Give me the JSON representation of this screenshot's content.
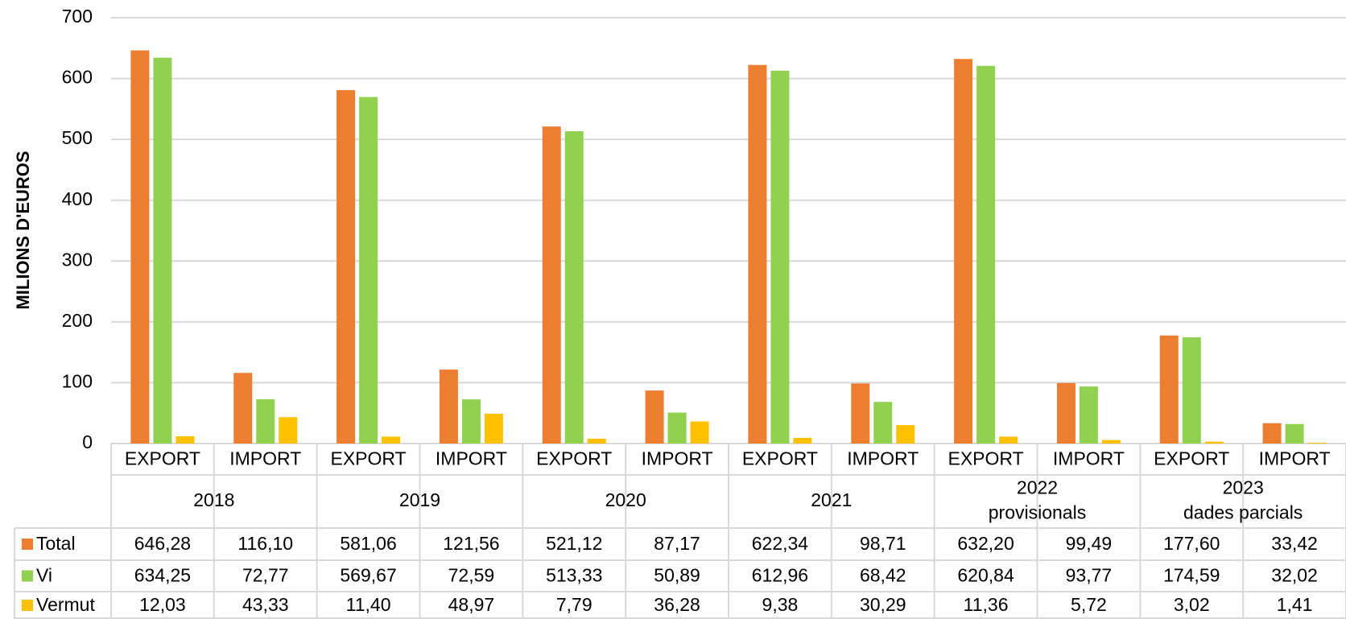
{
  "chart_data": {
    "type": "bar",
    "y_axis_label": "MILIONS D'EUROS",
    "categories": [
      "EXPORT",
      "IMPORT",
      "EXPORT",
      "IMPORT",
      "EXPORT",
      "IMPORT",
      "EXPORT",
      "IMPORT",
      "EXPORT",
      "IMPORT",
      "EXPORT",
      "IMPORT"
    ],
    "groups": [
      [
        "2018"
      ],
      [
        "2019"
      ],
      [
        "2020"
      ],
      [
        "2021"
      ],
      [
        "2022",
        "provisionals"
      ],
      [
        "2023",
        "dades parcials"
      ]
    ],
    "series": [
      {
        "name": "Total",
        "color": "#ED7D31",
        "values": [
          646.28,
          116.1,
          581.06,
          121.56,
          521.12,
          87.17,
          622.34,
          98.71,
          632.2,
          99.49,
          177.6,
          33.42
        ],
        "value_labels": [
          "646,28",
          "116,10",
          "581,06",
          "121,56",
          "521,12",
          "87,17",
          "622,34",
          "98,71",
          "632,20",
          "99,49",
          "177,60",
          "33,42"
        ]
      },
      {
        "name": "Vi",
        "color": "#92D050",
        "values": [
          634.25,
          72.77,
          569.67,
          72.59,
          513.33,
          50.89,
          612.96,
          68.42,
          620.84,
          93.77,
          174.59,
          32.02
        ],
        "value_labels": [
          "634,25",
          "72,77",
          "569,67",
          "72,59",
          "513,33",
          "50,89",
          "612,96",
          "68,42",
          "620,84",
          "93,77",
          "174,59",
          "32,02"
        ]
      },
      {
        "name": "Vermut",
        "color": "#FFC000",
        "values": [
          12.03,
          43.33,
          11.4,
          48.97,
          7.79,
          36.28,
          9.38,
          30.29,
          11.36,
          5.72,
          3.02,
          1.41
        ],
        "value_labels": [
          "12,03",
          "43,33",
          "11,40",
          "48,97",
          "7,79",
          "36,28",
          "9,38",
          "30,29",
          "11,36",
          "5,72",
          "3,02",
          "1,41"
        ]
      }
    ],
    "ylim": [
      0,
      700
    ],
    "yticks": [
      0,
      100,
      200,
      300,
      400,
      500,
      600,
      700
    ],
    "grid": true
  }
}
